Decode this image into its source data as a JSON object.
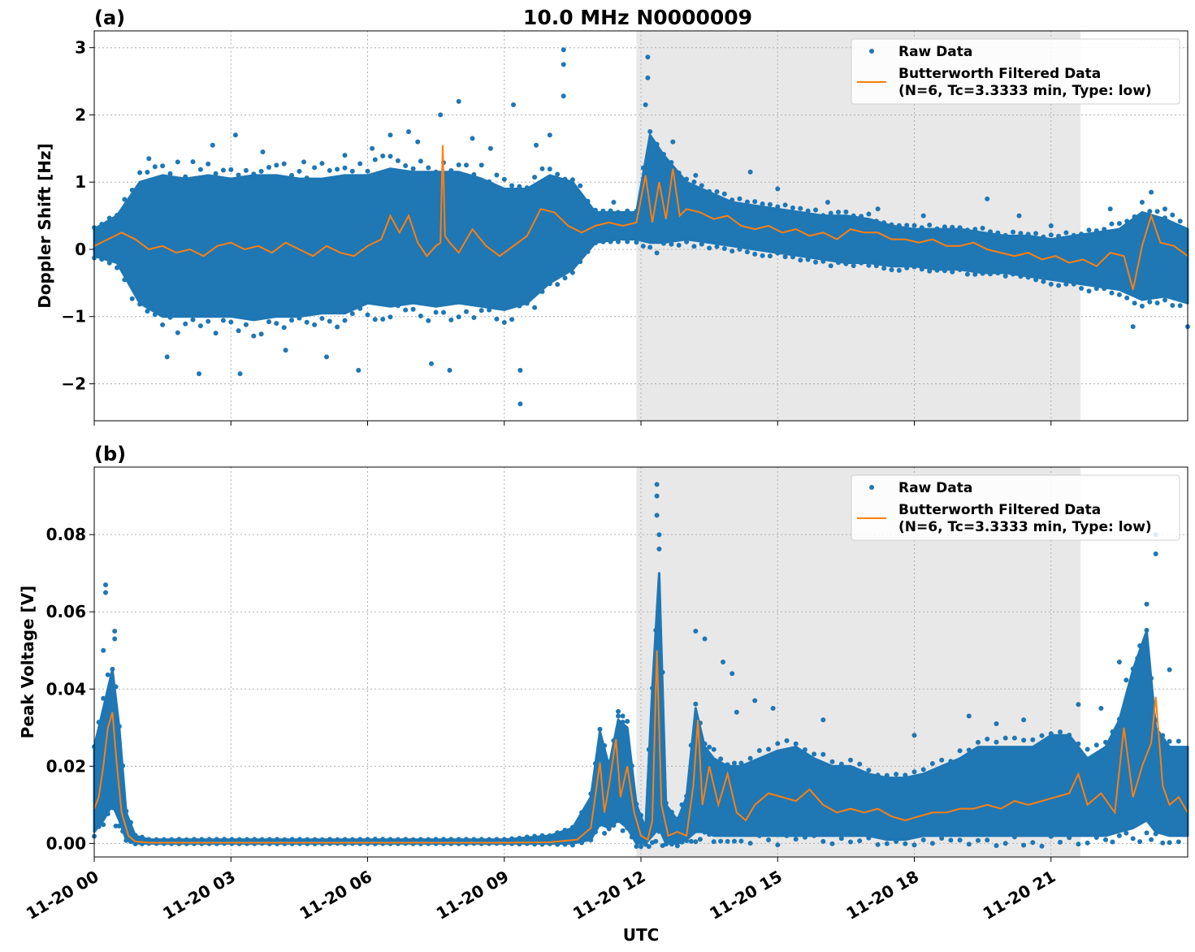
{
  "title": "10.0 MHz N0000009",
  "colors": {
    "raw": "#1f77b4",
    "filtered": "#ff7f0e",
    "shade": "#e8e8e8"
  },
  "chart_data": [
    {
      "type": "scatter",
      "panel_label": "(a)",
      "ylabel": "Doppler Shift [Hz]",
      "xlabel": "",
      "xlim": [
        0,
        24
      ],
      "ylim": [
        -2.55,
        3.25
      ],
      "yticks": [
        -2,
        -1,
        0,
        1,
        2,
        3
      ],
      "ytick_labels": [
        "−2",
        "−1",
        "0",
        "1",
        "2",
        "3"
      ],
      "grid": true,
      "shaded_region": [
        11.9,
        21.65
      ],
      "legend": {
        "position": "top-right",
        "entries": [
          "Raw Data",
          "Butterworth Filtered Data",
          "(N=6, Tc=3.3333 min, Type: low)"
        ]
      },
      "series": [
        {
          "name": "Raw Data",
          "kind": "scatter-band",
          "x": [
            0,
            0.5,
            1,
            1.5,
            2,
            2.5,
            3,
            3.5,
            4,
            4.5,
            5,
            5.5,
            6,
            6.5,
            7,
            7.5,
            8,
            8.5,
            9,
            9.5,
            10,
            10.5,
            11,
            11.5,
            11.9,
            12.2,
            12.5,
            13,
            13.5,
            14,
            14.5,
            15,
            15.5,
            16,
            16.5,
            17,
            17.5,
            18,
            18.5,
            19,
            19.5,
            20,
            20.5,
            21,
            21.5,
            22,
            22.5,
            23,
            23.5,
            24
          ],
          "upper": [
            0.3,
            0.5,
            1.0,
            1.1,
            1.05,
            1.1,
            1.05,
            1.1,
            1.1,
            1.05,
            1.05,
            1.1,
            1.1,
            1.2,
            1.15,
            1.15,
            1.15,
            1.05,
            0.9,
            0.9,
            1.1,
            1.0,
            0.55,
            0.55,
            0.55,
            1.7,
            1.4,
            1.0,
            0.85,
            0.7,
            0.65,
            0.6,
            0.55,
            0.5,
            0.5,
            0.45,
            0.35,
            0.3,
            0.3,
            0.3,
            0.25,
            0.2,
            0.2,
            0.15,
            0.2,
            0.25,
            0.3,
            0.55,
            0.45,
            0.3
          ],
          "lower": [
            -0.1,
            -0.2,
            -0.8,
            -1.0,
            -1.0,
            -1.0,
            -1.0,
            -1.05,
            -1.0,
            -1.0,
            -0.95,
            -0.95,
            -0.8,
            -0.85,
            -0.8,
            -0.85,
            -0.8,
            -0.85,
            -0.9,
            -0.8,
            -0.5,
            -0.3,
            0.1,
            0.15,
            0.15,
            0.1,
            0.1,
            0.15,
            0.1,
            0.05,
            0.0,
            -0.05,
            -0.1,
            -0.15,
            -0.2,
            -0.2,
            -0.25,
            -0.25,
            -0.3,
            -0.3,
            -0.35,
            -0.35,
            -0.4,
            -0.45,
            -0.5,
            -0.55,
            -0.6,
            -0.75,
            -0.7,
            -0.8
          ]
        },
        {
          "name": "Raw Data outliers",
          "kind": "points",
          "points": [
            [
              1.2,
              1.35
            ],
            [
              1.6,
              -1.6
            ],
            [
              2.3,
              -1.85
            ],
            [
              2.6,
              1.55
            ],
            [
              3.1,
              1.7
            ],
            [
              3.2,
              -1.85
            ],
            [
              3.7,
              1.45
            ],
            [
              4.2,
              -1.5
            ],
            [
              4.6,
              1.3
            ],
            [
              5.1,
              -1.6
            ],
            [
              5.5,
              1.4
            ],
            [
              5.8,
              -1.8
            ],
            [
              6.1,
              1.5
            ],
            [
              6.5,
              1.7
            ],
            [
              6.9,
              1.75
            ],
            [
              7.1,
              1.6
            ],
            [
              7.4,
              -1.7
            ],
            [
              7.6,
              2.0
            ],
            [
              7.8,
              -1.8
            ],
            [
              8.0,
              2.2
            ],
            [
              8.3,
              1.65
            ],
            [
              8.7,
              1.5
            ],
            [
              9.2,
              2.15
            ],
            [
              9.35,
              -2.3
            ],
            [
              9.35,
              -1.8
            ],
            [
              9.7,
              1.55
            ],
            [
              10.0,
              1.7
            ],
            [
              10.3,
              2.97
            ],
            [
              10.3,
              2.75
            ],
            [
              10.3,
              2.28
            ],
            [
              11.4,
              0.7
            ],
            [
              12.15,
              2.86
            ],
            [
              12.15,
              2.55
            ],
            [
              12.1,
              2.15
            ],
            [
              12.7,
              1.6
            ],
            [
              13.2,
              1.1
            ],
            [
              14.4,
              1.15
            ],
            [
              15.0,
              0.9
            ],
            [
              16.1,
              0.7
            ],
            [
              17.2,
              0.6
            ],
            [
              18.2,
              0.5
            ],
            [
              19.6,
              0.75
            ],
            [
              20.3,
              0.5
            ],
            [
              21.0,
              0.35
            ],
            [
              22.3,
              0.6
            ],
            [
              22.8,
              -1.15
            ],
            [
              23.2,
              0.85
            ],
            [
              23.5,
              0.6
            ],
            [
              24.0,
              -1.15
            ]
          ]
        },
        {
          "name": "Butterworth Filtered Data",
          "kind": "line",
          "x": [
            0,
            0.3,
            0.6,
            0.9,
            1.2,
            1.5,
            1.8,
            2.1,
            2.4,
            2.7,
            3.0,
            3.3,
            3.6,
            3.9,
            4.2,
            4.5,
            4.8,
            5.1,
            5.4,
            5.7,
            6.0,
            6.3,
            6.5,
            6.7,
            6.9,
            7.1,
            7.3,
            7.5,
            7.6,
            7.65,
            7.7,
            7.8,
            8.0,
            8.3,
            8.6,
            8.9,
            9.2,
            9.5,
            9.8,
            10.1,
            10.4,
            10.7,
            11.0,
            11.3,
            11.6,
            11.9,
            12.1,
            12.25,
            12.4,
            12.55,
            12.7,
            12.85,
            13.0,
            13.3,
            13.6,
            13.9,
            14.2,
            14.5,
            14.8,
            15.1,
            15.4,
            15.7,
            16.0,
            16.3,
            16.6,
            16.9,
            17.2,
            17.5,
            17.8,
            18.1,
            18.4,
            18.7,
            19.0,
            19.3,
            19.6,
            19.9,
            20.2,
            20.5,
            20.8,
            21.1,
            21.4,
            21.7,
            22.0,
            22.3,
            22.6,
            22.8,
            23.0,
            23.2,
            23.4,
            23.7,
            24.0
          ],
          "y": [
            0.05,
            0.15,
            0.25,
            0.15,
            0.0,
            0.05,
            -0.05,
            0.0,
            -0.1,
            0.05,
            0.1,
            0.0,
            0.05,
            -0.05,
            0.1,
            0.0,
            -0.1,
            0.05,
            -0.05,
            -0.1,
            0.05,
            0.15,
            0.5,
            0.25,
            0.5,
            0.1,
            -0.1,
            0.05,
            0.1,
            1.55,
            0.2,
            0.1,
            -0.05,
            0.3,
            0.05,
            -0.1,
            0.05,
            0.2,
            0.6,
            0.55,
            0.35,
            0.25,
            0.35,
            0.4,
            0.35,
            0.4,
            1.1,
            0.4,
            1.0,
            0.45,
            1.2,
            0.5,
            0.6,
            0.55,
            0.45,
            0.5,
            0.35,
            0.3,
            0.35,
            0.25,
            0.3,
            0.2,
            0.25,
            0.15,
            0.3,
            0.25,
            0.25,
            0.15,
            0.15,
            0.1,
            0.15,
            0.05,
            0.05,
            0.1,
            0.0,
            -0.05,
            -0.1,
            -0.05,
            -0.15,
            -0.1,
            -0.2,
            -0.15,
            -0.25,
            -0.05,
            -0.1,
            -0.6,
            0.05,
            0.5,
            0.1,
            0.05,
            -0.1
          ]
        }
      ]
    },
    {
      "type": "scatter",
      "panel_label": "(b)",
      "ylabel": "Peak Voltage [V]",
      "xlabel": "UTC",
      "xlim": [
        0,
        24
      ],
      "ylim": [
        -0.0035,
        0.0975
      ],
      "yticks": [
        0.0,
        0.02,
        0.04,
        0.06,
        0.08
      ],
      "ytick_labels": [
        "0.00",
        "0.02",
        "0.04",
        "0.06",
        "0.08"
      ],
      "xticks": [
        0,
        3,
        6,
        9,
        12,
        15,
        18,
        21
      ],
      "xtick_labels": [
        "11-20 00",
        "11-20 03",
        "11-20 06",
        "11-20 09",
        "11-20 12",
        "11-20 15",
        "11-20 18",
        "11-20 21"
      ],
      "grid": true,
      "shaded_region": [
        11.9,
        21.65
      ],
      "legend": {
        "position": "top-right",
        "entries": [
          "Raw Data",
          "Butterworth Filtered Data",
          "(N=6, Tc=3.3333 min, Type: low)"
        ]
      },
      "series": [
        {
          "name": "Raw Data",
          "kind": "scatter-band",
          "x": [
            0,
            0.2,
            0.4,
            0.55,
            0.7,
            0.9,
            1.2,
            6.0,
            9.0,
            10.0,
            10.5,
            10.9,
            11.1,
            11.3,
            11.5,
            11.7,
            11.9,
            12.1,
            12.25,
            12.4,
            12.55,
            12.8,
            13.0,
            13.2,
            13.4,
            13.6,
            13.9,
            14.2,
            14.6,
            15.0,
            15.4,
            15.8,
            16.2,
            16.6,
            17.0,
            17.4,
            17.8,
            18.2,
            18.6,
            19.0,
            19.4,
            19.8,
            20.2,
            20.6,
            21.0,
            21.4,
            21.8,
            22.2,
            22.5,
            22.8,
            23.1,
            23.3,
            23.6,
            24.0
          ],
          "upper": [
            0.025,
            0.035,
            0.045,
            0.03,
            0.008,
            0.002,
            0.001,
            0.001,
            0.001,
            0.002,
            0.004,
            0.012,
            0.029,
            0.02,
            0.032,
            0.03,
            0.01,
            0.004,
            0.04,
            0.07,
            0.01,
            0.006,
            0.012,
            0.035,
            0.025,
            0.022,
            0.02,
            0.02,
            0.022,
            0.024,
            0.025,
            0.022,
            0.02,
            0.02,
            0.018,
            0.017,
            0.017,
            0.018,
            0.02,
            0.022,
            0.025,
            0.025,
            0.025,
            0.025,
            0.028,
            0.028,
            0.022,
            0.025,
            0.032,
            0.045,
            0.055,
            0.03,
            0.025,
            0.025
          ],
          "lower": [
            0.003,
            0.006,
            0.01,
            0.006,
            0.001,
            0.0,
            0.0,
            0.0,
            0.0,
            0.0,
            0.0,
            0.001,
            0.005,
            0.004,
            0.006,
            0.004,
            0.0,
            0.0,
            0.002,
            0.004,
            0.0,
            0.0,
            0.001,
            0.003,
            0.003,
            0.002,
            0.002,
            0.002,
            0.002,
            0.002,
            0.002,
            0.002,
            0.002,
            0.002,
            0.002,
            0.001,
            0.001,
            0.002,
            0.002,
            0.002,
            0.002,
            0.002,
            0.002,
            0.002,
            0.002,
            0.002,
            0.002,
            0.002,
            0.003,
            0.004,
            0.006,
            0.003,
            0.002,
            0.002
          ]
        },
        {
          "name": "Raw Data outliers",
          "kind": "points",
          "points": [
            [
              0.25,
              0.067
            ],
            [
              0.25,
              0.065
            ],
            [
              0.45,
              0.055
            ],
            [
              0.45,
              0.053
            ],
            [
              0.2,
              0.05
            ],
            [
              7.5,
              0.001
            ],
            [
              11.5,
              0.033
            ],
            [
              11.6,
              0.033
            ],
            [
              12.35,
              0.093
            ],
            [
              12.35,
              0.09
            ],
            [
              12.35,
              0.085
            ],
            [
              12.4,
              0.08
            ],
            [
              13.2,
              0.055
            ],
            [
              13.4,
              0.053
            ],
            [
              13.8,
              0.047
            ],
            [
              14.0,
              0.044
            ],
            [
              14.1,
              0.034
            ],
            [
              14.5,
              0.037
            ],
            [
              14.9,
              0.035
            ],
            [
              16.0,
              0.032
            ],
            [
              18.0,
              0.028
            ],
            [
              19.2,
              0.033
            ],
            [
              19.8,
              0.031
            ],
            [
              20.4,
              0.032
            ],
            [
              21.6,
              0.036
            ],
            [
              22.1,
              0.035
            ],
            [
              22.5,
              0.047
            ],
            [
              22.9,
              0.048
            ],
            [
              23.1,
              0.062
            ],
            [
              23.3,
              0.075
            ],
            [
              23.3,
              0.08
            ],
            [
              23.6,
              0.045
            ]
          ]
        },
        {
          "name": "Butterworth Filtered Data",
          "kind": "line",
          "x": [
            0,
            0.1,
            0.2,
            0.3,
            0.4,
            0.5,
            0.6,
            0.75,
            0.9,
            1.2,
            6.0,
            9.0,
            10.0,
            10.6,
            10.9,
            11.1,
            11.2,
            11.3,
            11.45,
            11.55,
            11.7,
            11.85,
            12.0,
            12.15,
            12.25,
            12.35,
            12.45,
            12.6,
            12.8,
            13.0,
            13.15,
            13.25,
            13.35,
            13.5,
            13.7,
            13.9,
            14.1,
            14.3,
            14.5,
            14.8,
            15.1,
            15.4,
            15.7,
            16.0,
            16.3,
            16.6,
            16.9,
            17.2,
            17.5,
            17.8,
            18.1,
            18.4,
            18.7,
            19.0,
            19.3,
            19.6,
            19.9,
            20.2,
            20.5,
            20.8,
            21.1,
            21.4,
            21.6,
            21.8,
            22.1,
            22.4,
            22.6,
            22.8,
            23.0,
            23.2,
            23.3,
            23.45,
            23.6,
            23.8,
            24.0
          ],
          "y": [
            0.009,
            0.012,
            0.02,
            0.03,
            0.034,
            0.02,
            0.008,
            0.002,
            0.0005,
            0.0002,
            0.0002,
            0.0002,
            0.0003,
            0.001,
            0.004,
            0.021,
            0.008,
            0.015,
            0.027,
            0.012,
            0.02,
            0.008,
            0.002,
            0.001,
            0.006,
            0.05,
            0.01,
            0.002,
            0.003,
            0.002,
            0.015,
            0.032,
            0.01,
            0.02,
            0.01,
            0.018,
            0.008,
            0.006,
            0.01,
            0.013,
            0.012,
            0.011,
            0.014,
            0.01,
            0.008,
            0.009,
            0.008,
            0.009,
            0.007,
            0.006,
            0.007,
            0.008,
            0.008,
            0.009,
            0.009,
            0.01,
            0.009,
            0.011,
            0.01,
            0.011,
            0.012,
            0.013,
            0.018,
            0.01,
            0.013,
            0.008,
            0.03,
            0.012,
            0.02,
            0.026,
            0.038,
            0.015,
            0.01,
            0.012,
            0.008
          ]
        }
      ]
    }
  ]
}
